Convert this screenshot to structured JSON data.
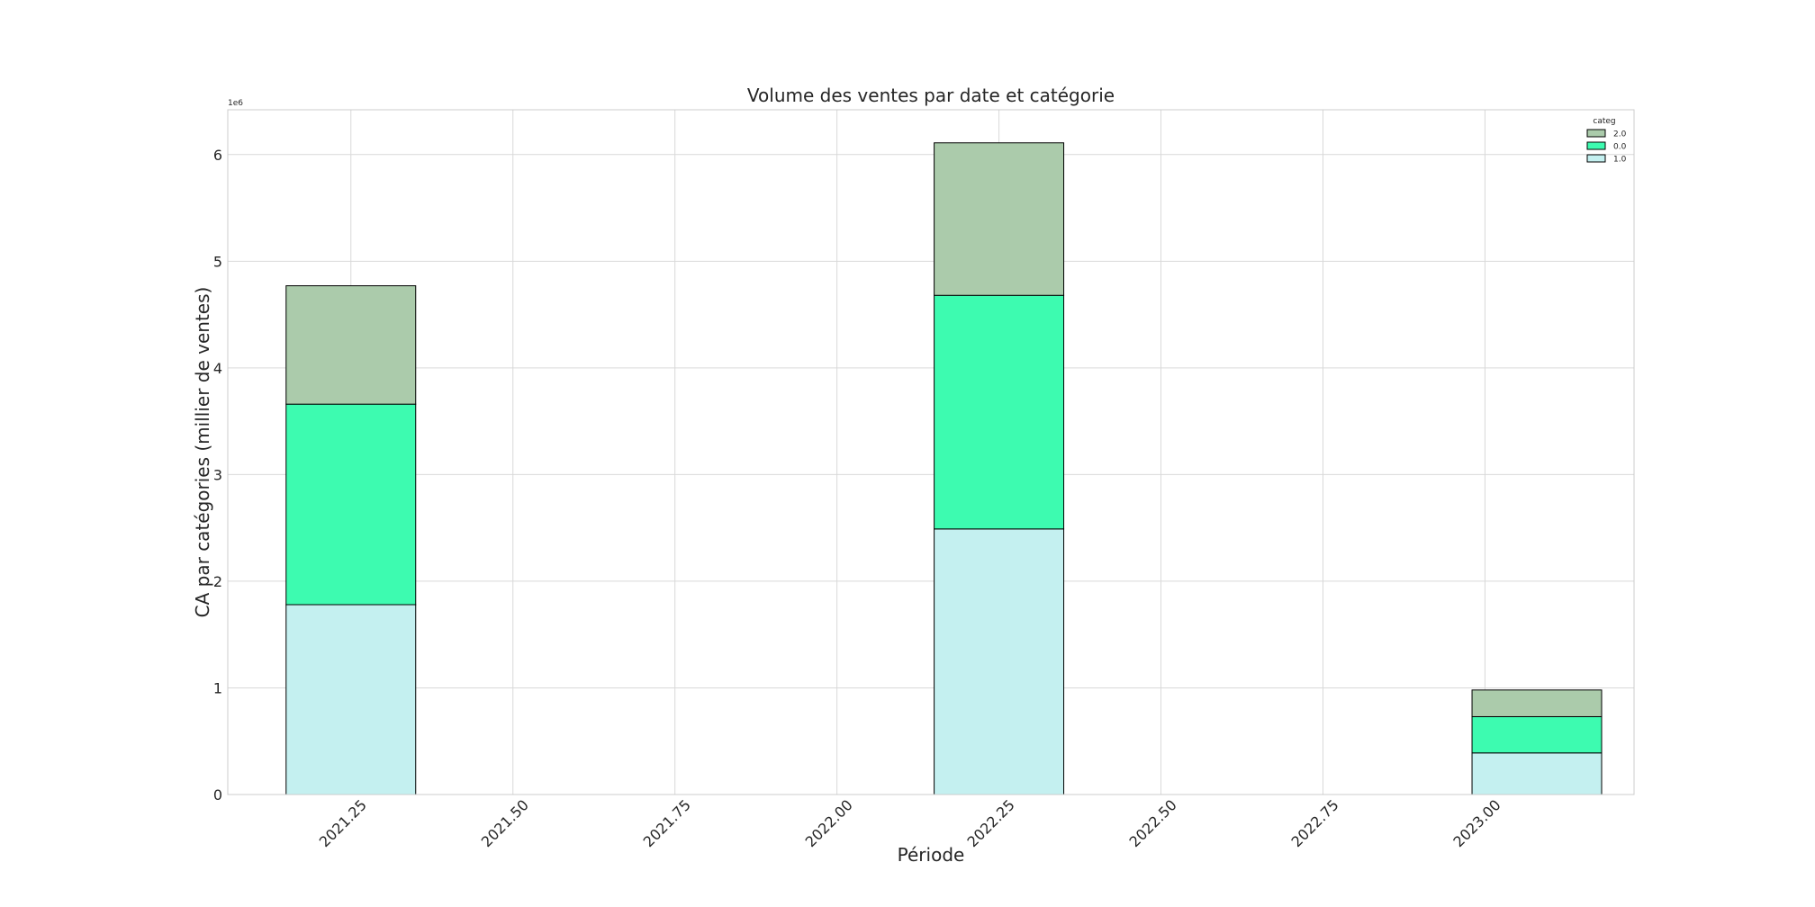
{
  "chart_data": {
    "type": "bar",
    "stacked": true,
    "title": "Volume des ventes par date et catégorie",
    "xlabel": "Période",
    "ylabel": "CA par catégories (millier de ventes)",
    "y_offset_label": "1e6",
    "x": [
      2021.25,
      2022.25,
      2023.08
    ],
    "bar_width": 0.2,
    "xlim": [
      2021.06,
      2023.23
    ],
    "ylim": [
      0,
      6.42
    ],
    "xticks": [
      2021.25,
      2021.5,
      2021.75,
      2022.0,
      2022.25,
      2022.5,
      2022.75,
      2023.0
    ],
    "xtick_labels": [
      "2021.25",
      "2021.50",
      "2021.75",
      "2022.00",
      "2022.25",
      "2022.50",
      "2022.75",
      "2023.00"
    ],
    "yticks": [
      0,
      1,
      2,
      3,
      4,
      5,
      6
    ],
    "ytick_labels": [
      "0",
      "1",
      "2",
      "3",
      "4",
      "5",
      "6"
    ],
    "grid": true,
    "legend_title": "categ",
    "legend_position": "top-right",
    "series": [
      {
        "name": "1.0",
        "color": "#c4f0f0",
        "values": [
          1.78,
          2.49,
          0.39
        ]
      },
      {
        "name": "0.0",
        "color": "#3dfbb0",
        "values": [
          1.88,
          2.19,
          0.34
        ]
      },
      {
        "name": "2.0",
        "color": "#abcbab",
        "values": [
          1.11,
          1.43,
          0.25
        ]
      }
    ],
    "legend_order": [
      "2.0",
      "0.0",
      "1.0"
    ]
  }
}
